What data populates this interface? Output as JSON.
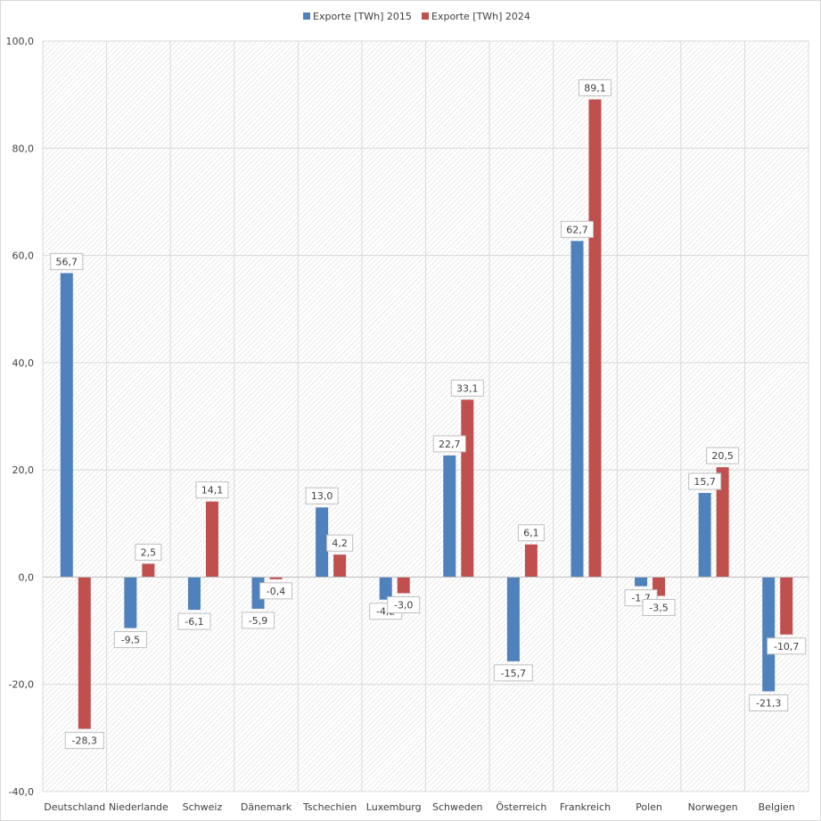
{
  "chart_data": {
    "type": "bar",
    "title": "",
    "xlabel": "",
    "ylabel": "",
    "ylim": [
      -40,
      100
    ],
    "yticks": [
      -40,
      -20,
      0,
      20,
      40,
      60,
      80,
      100
    ],
    "ytick_labels": [
      "-40,0",
      "-20,0",
      "0,0",
      "20,0",
      "40,0",
      "60,0",
      "80,0",
      "100,0"
    ],
    "grid": true,
    "legend_position": "top",
    "categories": [
      "Deutschland",
      "Niederlande",
      "Schweiz",
      "Dänemark",
      "Tschechien",
      "Luxemburg",
      "Schweden",
      "Österreich",
      "Frankreich",
      "Polen",
      "Norwegen",
      "Belgien"
    ],
    "series": [
      {
        "name": "Exporte [TWh] 2015",
        "color": "#4F81BD",
        "values": [
          56.7,
          -9.5,
          -6.1,
          -5.9,
          13.0,
          -4.2,
          22.7,
          -15.7,
          62.7,
          -1.7,
          15.7,
          -21.3
        ],
        "labels": [
          "56,7",
          "-9,5",
          "-6,1",
          "-5,9",
          "13,0",
          "-4,2",
          "22,7",
          "-15,7",
          "62,7",
          "-1,7",
          "15,7",
          "-21,3"
        ]
      },
      {
        "name": "Exporte [TWh] 2024",
        "color": "#C0504D",
        "values": [
          -28.3,
          2.5,
          14.1,
          -0.4,
          4.2,
          -3.0,
          33.1,
          6.1,
          89.1,
          -3.5,
          20.5,
          -10.7
        ],
        "labels": [
          "-28,3",
          "2,5",
          "14,1",
          "-0,4",
          "4,2",
          "-3,0",
          "33,1",
          "6,1",
          "89,1",
          "-3,5",
          "20,5",
          "-10,7"
        ]
      }
    ]
  }
}
